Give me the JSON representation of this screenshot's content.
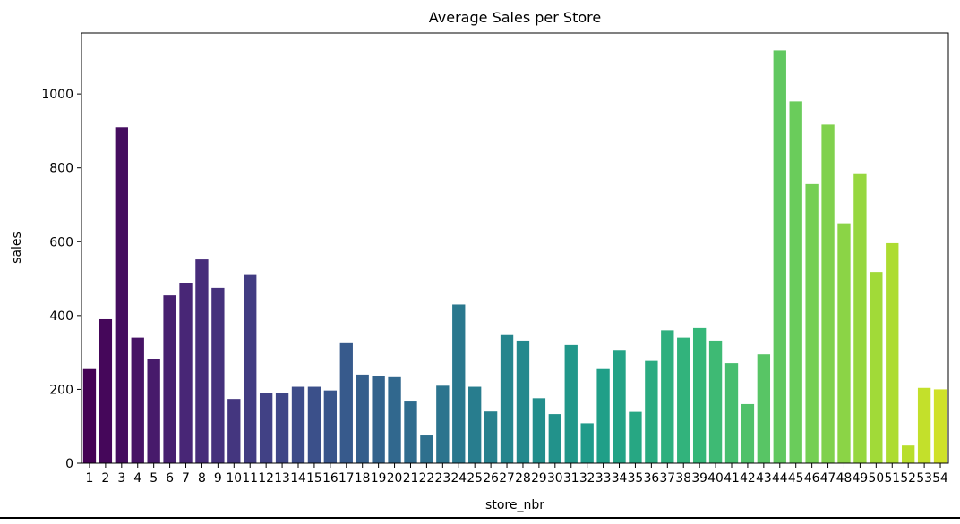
{
  "chart_data": {
    "type": "bar",
    "title": "Average Sales per Store",
    "xlabel": "store_nbr",
    "ylabel": "sales",
    "ylim": [
      0,
      1165
    ],
    "yticks": [
      0,
      200,
      400,
      600,
      800,
      1000
    ],
    "grid": false,
    "legend": "none",
    "palette": "viridis",
    "categories": [
      "1",
      "2",
      "3",
      "4",
      "5",
      "6",
      "7",
      "8",
      "9",
      "10",
      "11",
      "12",
      "13",
      "14",
      "15",
      "16",
      "17",
      "18",
      "19",
      "20",
      "21",
      "22",
      "23",
      "24",
      "25",
      "26",
      "27",
      "28",
      "29",
      "30",
      "31",
      "32",
      "33",
      "34",
      "35",
      "36",
      "37",
      "38",
      "39",
      "40",
      "41",
      "42",
      "43",
      "44",
      "45",
      "46",
      "47",
      "48",
      "49",
      "50",
      "51",
      "52",
      "53",
      "54"
    ],
    "values": [
      255,
      390,
      910,
      340,
      283,
      455,
      487,
      552,
      475,
      174,
      512,
      191,
      191,
      207,
      207,
      197,
      325,
      240,
      235,
      233,
      167,
      75,
      210,
      430,
      207,
      140,
      347,
      332,
      176,
      133,
      320,
      108,
      255,
      307,
      139,
      277,
      360,
      340,
      366,
      332,
      271,
      160,
      295,
      1118,
      980,
      756,
      917,
      650,
      783,
      518,
      596,
      48,
      204,
      200
    ]
  }
}
